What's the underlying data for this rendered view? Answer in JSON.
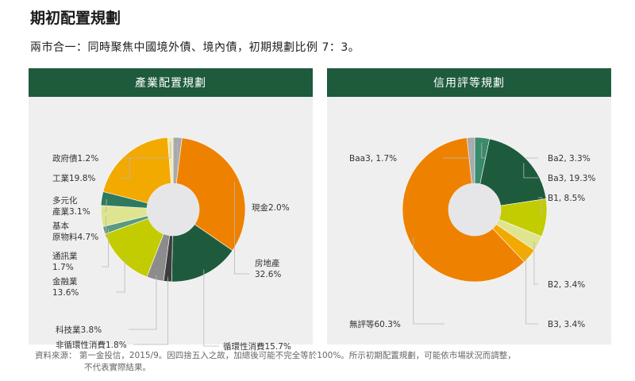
{
  "title": "期初配置規劃",
  "subtitle": "兩市合一：同時聚焦中國境外債、境內債，初期規劃比例 7：3。",
  "footnote": {
    "line1": "資料來源： 第一金投信，2015/9。因四捨五入之故，加總後可能不完全等於100%。所示初期配置規劃，可能依市場狀況而調整，",
    "line2": "不代表實際結果。"
  },
  "chart_data": [
    {
      "type": "pie",
      "title": "產業配置規劃",
      "slices": [
        {
          "label": "現金",
          "value": 2.0,
          "display": "現金2.0%",
          "color": "#a7a9ac"
        },
        {
          "label": "房地產",
          "value": 32.6,
          "display_lines": [
            "房地產",
            "32.6%"
          ],
          "color": "#ee8200"
        },
        {
          "label": "循環性消費",
          "value": 15.7,
          "display": "循環性消費15.7%",
          "color": "#1e5b3c"
        },
        {
          "label": "非循環性消費",
          "value": 1.8,
          "display": "非循環性消費1.8%",
          "color": "#3d3d3d"
        },
        {
          "label": "科技業",
          "value": 3.8,
          "display": "科技業3.8%",
          "color": "#8c8c8c"
        },
        {
          "label": "金融業",
          "value": 13.6,
          "display_lines": [
            "金融業",
            "13.6%"
          ],
          "color": "#c3cc00"
        },
        {
          "label": "通訊業",
          "value": 1.7,
          "display_lines": [
            "通訊業",
            "1.7%"
          ],
          "color": "#5a9a80"
        },
        {
          "label": "基本原物料",
          "value": 4.7,
          "display_lines": [
            "基本",
            "原物料4.7%"
          ],
          "color": "#dfe490"
        },
        {
          "label": "多元化產業",
          "value": 3.1,
          "display_lines": [
            "多元化",
            "產業3.1%"
          ],
          "color": "#2f7a5e"
        },
        {
          "label": "工業",
          "value": 19.8,
          "display": "工業19.8%",
          "color": "#f2a900"
        },
        {
          "label": "政府債",
          "value": 1.2,
          "display": "政府債1.2%",
          "color": "#f3eab0"
        }
      ]
    },
    {
      "type": "pie",
      "title": "信用評等規劃",
      "slices": [
        {
          "label": "Ba2",
          "value": 3.3,
          "display": "Ba2, 3.3%",
          "color": "#3a8a6c"
        },
        {
          "label": "Ba3",
          "value": 19.3,
          "display": "Ba3, 19.3%",
          "color": "#1e5b3c"
        },
        {
          "label": "B1",
          "value": 8.5,
          "display": "B1, 8.5%",
          "color": "#c3cc00"
        },
        {
          "label": "B2",
          "value": 3.4,
          "display": "B2, 3.4%",
          "color": "#dfe490"
        },
        {
          "label": "B3",
          "value": 3.4,
          "display": "B3, 3.4%",
          "color": "#f2a900"
        },
        {
          "label": "無評等",
          "value": 60.3,
          "display": "無評等60.3%",
          "color": "#ee8200"
        },
        {
          "label": "Baa3",
          "value": 1.7,
          "display": "Baa3, 1.7%",
          "color": "#a7a9ac"
        }
      ]
    }
  ]
}
